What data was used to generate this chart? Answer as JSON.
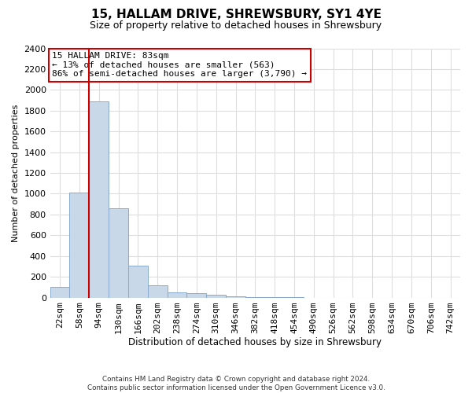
{
  "title": "15, HALLAM DRIVE, SHREWSBURY, SY1 4YE",
  "subtitle": "Size of property relative to detached houses in Shrewsbury",
  "xlabel": "Distribution of detached houses by size in Shrewsbury",
  "ylabel": "Number of detached properties",
  "categories": [
    "22sqm",
    "58sqm",
    "94sqm",
    "130sqm",
    "166sqm",
    "202sqm",
    "238sqm",
    "274sqm",
    "310sqm",
    "346sqm",
    "382sqm",
    "418sqm",
    "454sqm",
    "490sqm",
    "526sqm",
    "562sqm",
    "598sqm",
    "634sqm",
    "670sqm",
    "706sqm",
    "742sqm"
  ],
  "bar_heights": [
    100,
    1010,
    1890,
    860,
    310,
    120,
    50,
    40,
    28,
    14,
    7,
    2,
    1,
    0,
    0,
    0,
    0,
    0,
    0,
    0,
    0
  ],
  "bar_color": "#c8d8e8",
  "bar_edgecolor": "#88aacc",
  "ylim_max": 2400,
  "yticks": [
    0,
    200,
    400,
    600,
    800,
    1000,
    1200,
    1400,
    1600,
    1800,
    2000,
    2200,
    2400
  ],
  "vline_color": "#cc0000",
  "vline_position": 1.5,
  "annotation_text": "15 HALLAM DRIVE: 83sqm\n← 13% of detached houses are smaller (563)\n86% of semi-detached houses are larger (3,790) →",
  "annotation_edgecolor": "#cc0000",
  "footer_line1": "Contains HM Land Registry data © Crown copyright and database right 2024.",
  "footer_line2": "Contains public sector information licensed under the Open Government Licence v3.0.",
  "bg_color": "#ffffff",
  "grid_color": "#dddddd",
  "title_fontsize": 11,
  "subtitle_fontsize": 9
}
